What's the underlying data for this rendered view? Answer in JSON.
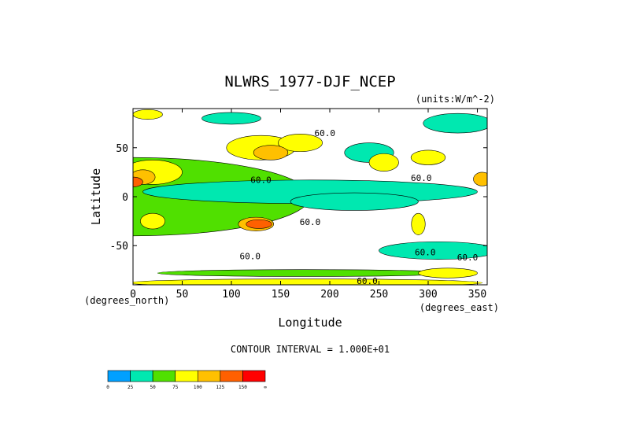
{
  "chart_data": {
    "type": "heatmap",
    "title": "NLWRS_1977-DJF_NCEP",
    "units_label": "(units:W/m^-2)",
    "xlabel": "Longitude",
    "ylabel": "Latitude",
    "x_unit_label": "(degrees_east)",
    "y_unit_label": "(degrees_north)",
    "xlim": [
      0,
      360
    ],
    "ylim": [
      -90,
      90
    ],
    "x_ticks": [
      0,
      50,
      100,
      150,
      200,
      250,
      300,
      350
    ],
    "y_ticks": [
      -50,
      0,
      50
    ],
    "x_tick_labels": [
      "0",
      "50",
      "100",
      "150",
      "200",
      "250",
      "300",
      "350"
    ],
    "y_tick_labels": [
      "-50",
      "0",
      "50"
    ],
    "contour_interval_text": "CONTOUR INTERVAL = 1.000E+01",
    "contour_labels": [
      {
        "text": "60.0",
        "lon": 195,
        "lat": 62
      },
      {
        "text": "60.0",
        "lon": 130,
        "lat": 14
      },
      {
        "text": "60.0",
        "lon": 180,
        "lat": -29
      },
      {
        "text": "60.0",
        "lon": 293,
        "lat": 16
      },
      {
        "text": "60.0",
        "lon": 297,
        "lat": -60
      },
      {
        "text": "60.0",
        "lon": 340,
        "lat": -65
      },
      {
        "text": "60.0",
        "lon": 119,
        "lat": -64
      },
      {
        "text": "60.0",
        "lon": 238,
        "lat": -89
      }
    ],
    "colorbar": {
      "levels": [
        "0",
        "25",
        "50",
        "75",
        "100",
        "125",
        "150",
        "∞"
      ],
      "colors": [
        "#00a0ff",
        "#00e8b0",
        "#50e000",
        "#ffff00",
        "#ffc000",
        "#ff6000",
        "#ff0000"
      ]
    },
    "regions": [
      {
        "lon": 0,
        "lat": 0,
        "lon_span": 360,
        "lat_span": 80,
        "level": 2
      },
      {
        "lon": 180,
        "lat": 5,
        "lon_span": 340,
        "lat_span": 24,
        "level": 1
      },
      {
        "lon": 225,
        "lat": -5,
        "lon_span": 130,
        "lat_span": 18,
        "level": 1
      },
      {
        "lon": 310,
        "lat": -55,
        "lon_span": 120,
        "lat_span": 18,
        "level": 1
      },
      {
        "lon": 100,
        "lat": 80,
        "lon_span": 60,
        "lat_span": 12,
        "level": 1
      },
      {
        "lon": 330,
        "lat": 75,
        "lon_span": 70,
        "lat_span": 20,
        "level": 1
      },
      {
        "lon": 240,
        "lat": 45,
        "lon_span": 50,
        "lat_span": 20,
        "level": 1
      },
      {
        "lon": 20,
        "lat": 25,
        "lon_span": 60,
        "lat_span": 25,
        "level": 3
      },
      {
        "lon": 130,
        "lat": 50,
        "lon_span": 70,
        "lat_span": 25,
        "level": 3
      },
      {
        "lon": 170,
        "lat": 55,
        "lon_span": 45,
        "lat_span": 18,
        "level": 3
      },
      {
        "lon": 255,
        "lat": 35,
        "lon_span": 30,
        "lat_span": 18,
        "level": 3
      },
      {
        "lon": 300,
        "lat": 40,
        "lon_span": 35,
        "lat_span": 15,
        "level": 3
      },
      {
        "lon": 10,
        "lat": 20,
        "lon_span": 25,
        "lat_span": 15,
        "level": 4
      },
      {
        "lon": 140,
        "lat": 45,
        "lon_span": 35,
        "lat_span": 15,
        "level": 4
      },
      {
        "lon": 0,
        "lat": 15,
        "lon_span": 20,
        "lat_span": 10,
        "level": 5
      },
      {
        "lon": 355,
        "lat": 18,
        "lon_span": 18,
        "lat_span": 14,
        "level": 4
      },
      {
        "lon": 125,
        "lat": -28,
        "lon_span": 36,
        "lat_span": 14,
        "level": 4
      },
      {
        "lon": 128,
        "lat": -28,
        "lon_span": 26,
        "lat_span": 9,
        "level": 5
      },
      {
        "lon": 290,
        "lat": -28,
        "lon_span": 14,
        "lat_span": 22,
        "level": 3
      },
      {
        "lon": 20,
        "lat": -25,
        "lon_span": 25,
        "lat_span": 16,
        "level": 3
      },
      {
        "lon": 175,
        "lat": -88,
        "lon_span": 360,
        "lat_span": 8,
        "level": 3
      },
      {
        "lon": 175,
        "lat": -78,
        "lon_span": 300,
        "lat_span": 7,
        "level": 2
      },
      {
        "lon": 320,
        "lat": -78,
        "lon_span": 60,
        "lat_span": 10,
        "level": 3
      },
      {
        "lon": 15,
        "lat": 84,
        "lon_span": 30,
        "lat_span": 10,
        "level": 3
      }
    ]
  }
}
